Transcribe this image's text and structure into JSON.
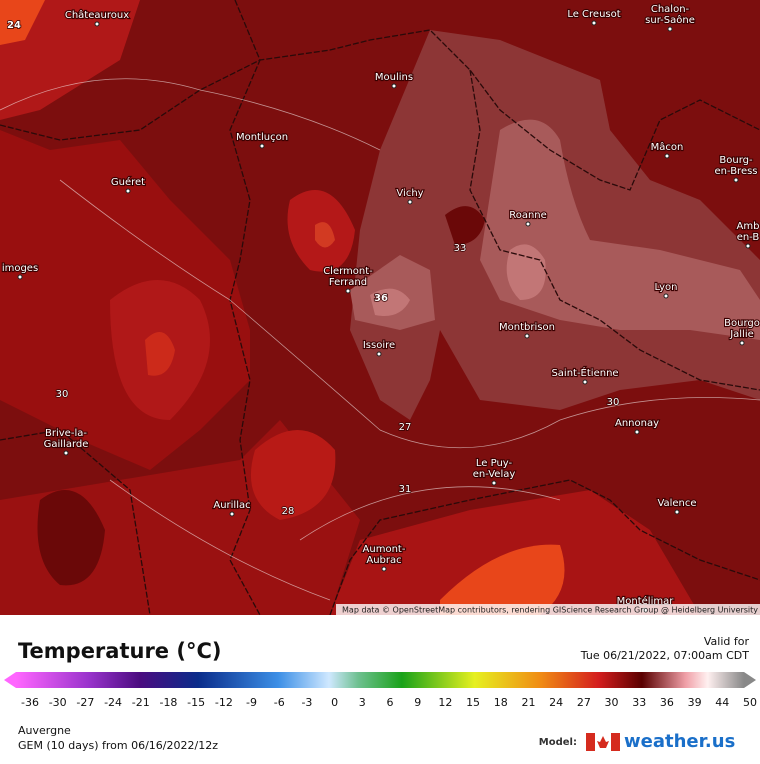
{
  "map": {
    "cities": [
      {
        "lines": [
          "Châteauroux"
        ]
      },
      {
        "lines": [
          "Le Creusot"
        ]
      },
      {
        "lines": [
          "Chalon-",
          "sur-Saône"
        ]
      },
      {
        "lines": [
          "Moulins"
        ]
      },
      {
        "lines": [
          "Montluçon"
        ]
      },
      {
        "lines": [
          "Mâcon"
        ]
      },
      {
        "lines": [
          "Bourg-",
          "en-Bress"
        ]
      },
      {
        "lines": [
          "Guéret"
        ]
      },
      {
        "lines": [
          "Vichy"
        ]
      },
      {
        "lines": [
          "Roanne"
        ]
      },
      {
        "lines": [
          "Amb",
          "en-B"
        ]
      },
      {
        "lines": [
          "imoges"
        ]
      },
      {
        "lines": [
          "Clermont-",
          "Ferrand"
        ]
      },
      {
        "lines": [
          "Lyon"
        ]
      },
      {
        "lines": [
          "Bourgo",
          "Jallie"
        ]
      },
      {
        "lines": [
          "Issoire"
        ]
      },
      {
        "lines": [
          "Montbrison"
        ]
      },
      {
        "lines": [
          "Saint-Étienne"
        ]
      },
      {
        "lines": [
          "Brive-la-",
          "Gaillarde"
        ]
      },
      {
        "lines": [
          "Annonay"
        ]
      },
      {
        "lines": [
          "Le Puy-",
          "en-Velay"
        ]
      },
      {
        "lines": [
          "Aurillac"
        ]
      },
      {
        "lines": [
          "Valence"
        ]
      },
      {
        "lines": [
          "Aumont-",
          "Aubrac"
        ]
      },
      {
        "lines": [
          "Montélimar"
        ]
      }
    ],
    "contour_labels": [
      "24",
      "36",
      "33",
      "30",
      "27",
      "31",
      "28",
      "30"
    ],
    "attribution": "Map data © OpenStreetMap contributors, rendering GIScience Research Group @ Heidelberg University"
  },
  "legend": {
    "title": "Temperature (°C)",
    "ticks": [
      "-36",
      "-30",
      "-27",
      "-24",
      "-21",
      "-18",
      "-15",
      "-12",
      "-9",
      "-6",
      "-3",
      "0",
      "3",
      "6",
      "9",
      "12",
      "15",
      "18",
      "21",
      "24",
      "27",
      "30",
      "33",
      "36",
      "39",
      "44",
      "50"
    ]
  },
  "valid": {
    "label": "Valid for",
    "time": "Tue 06/21/2022, 07:00am CDT"
  },
  "footer": {
    "region": "Auvergne",
    "model_run": "GEM (10 days) from 06/16/2022/12z",
    "model_label": "Model:",
    "brand": "weather.us"
  }
}
